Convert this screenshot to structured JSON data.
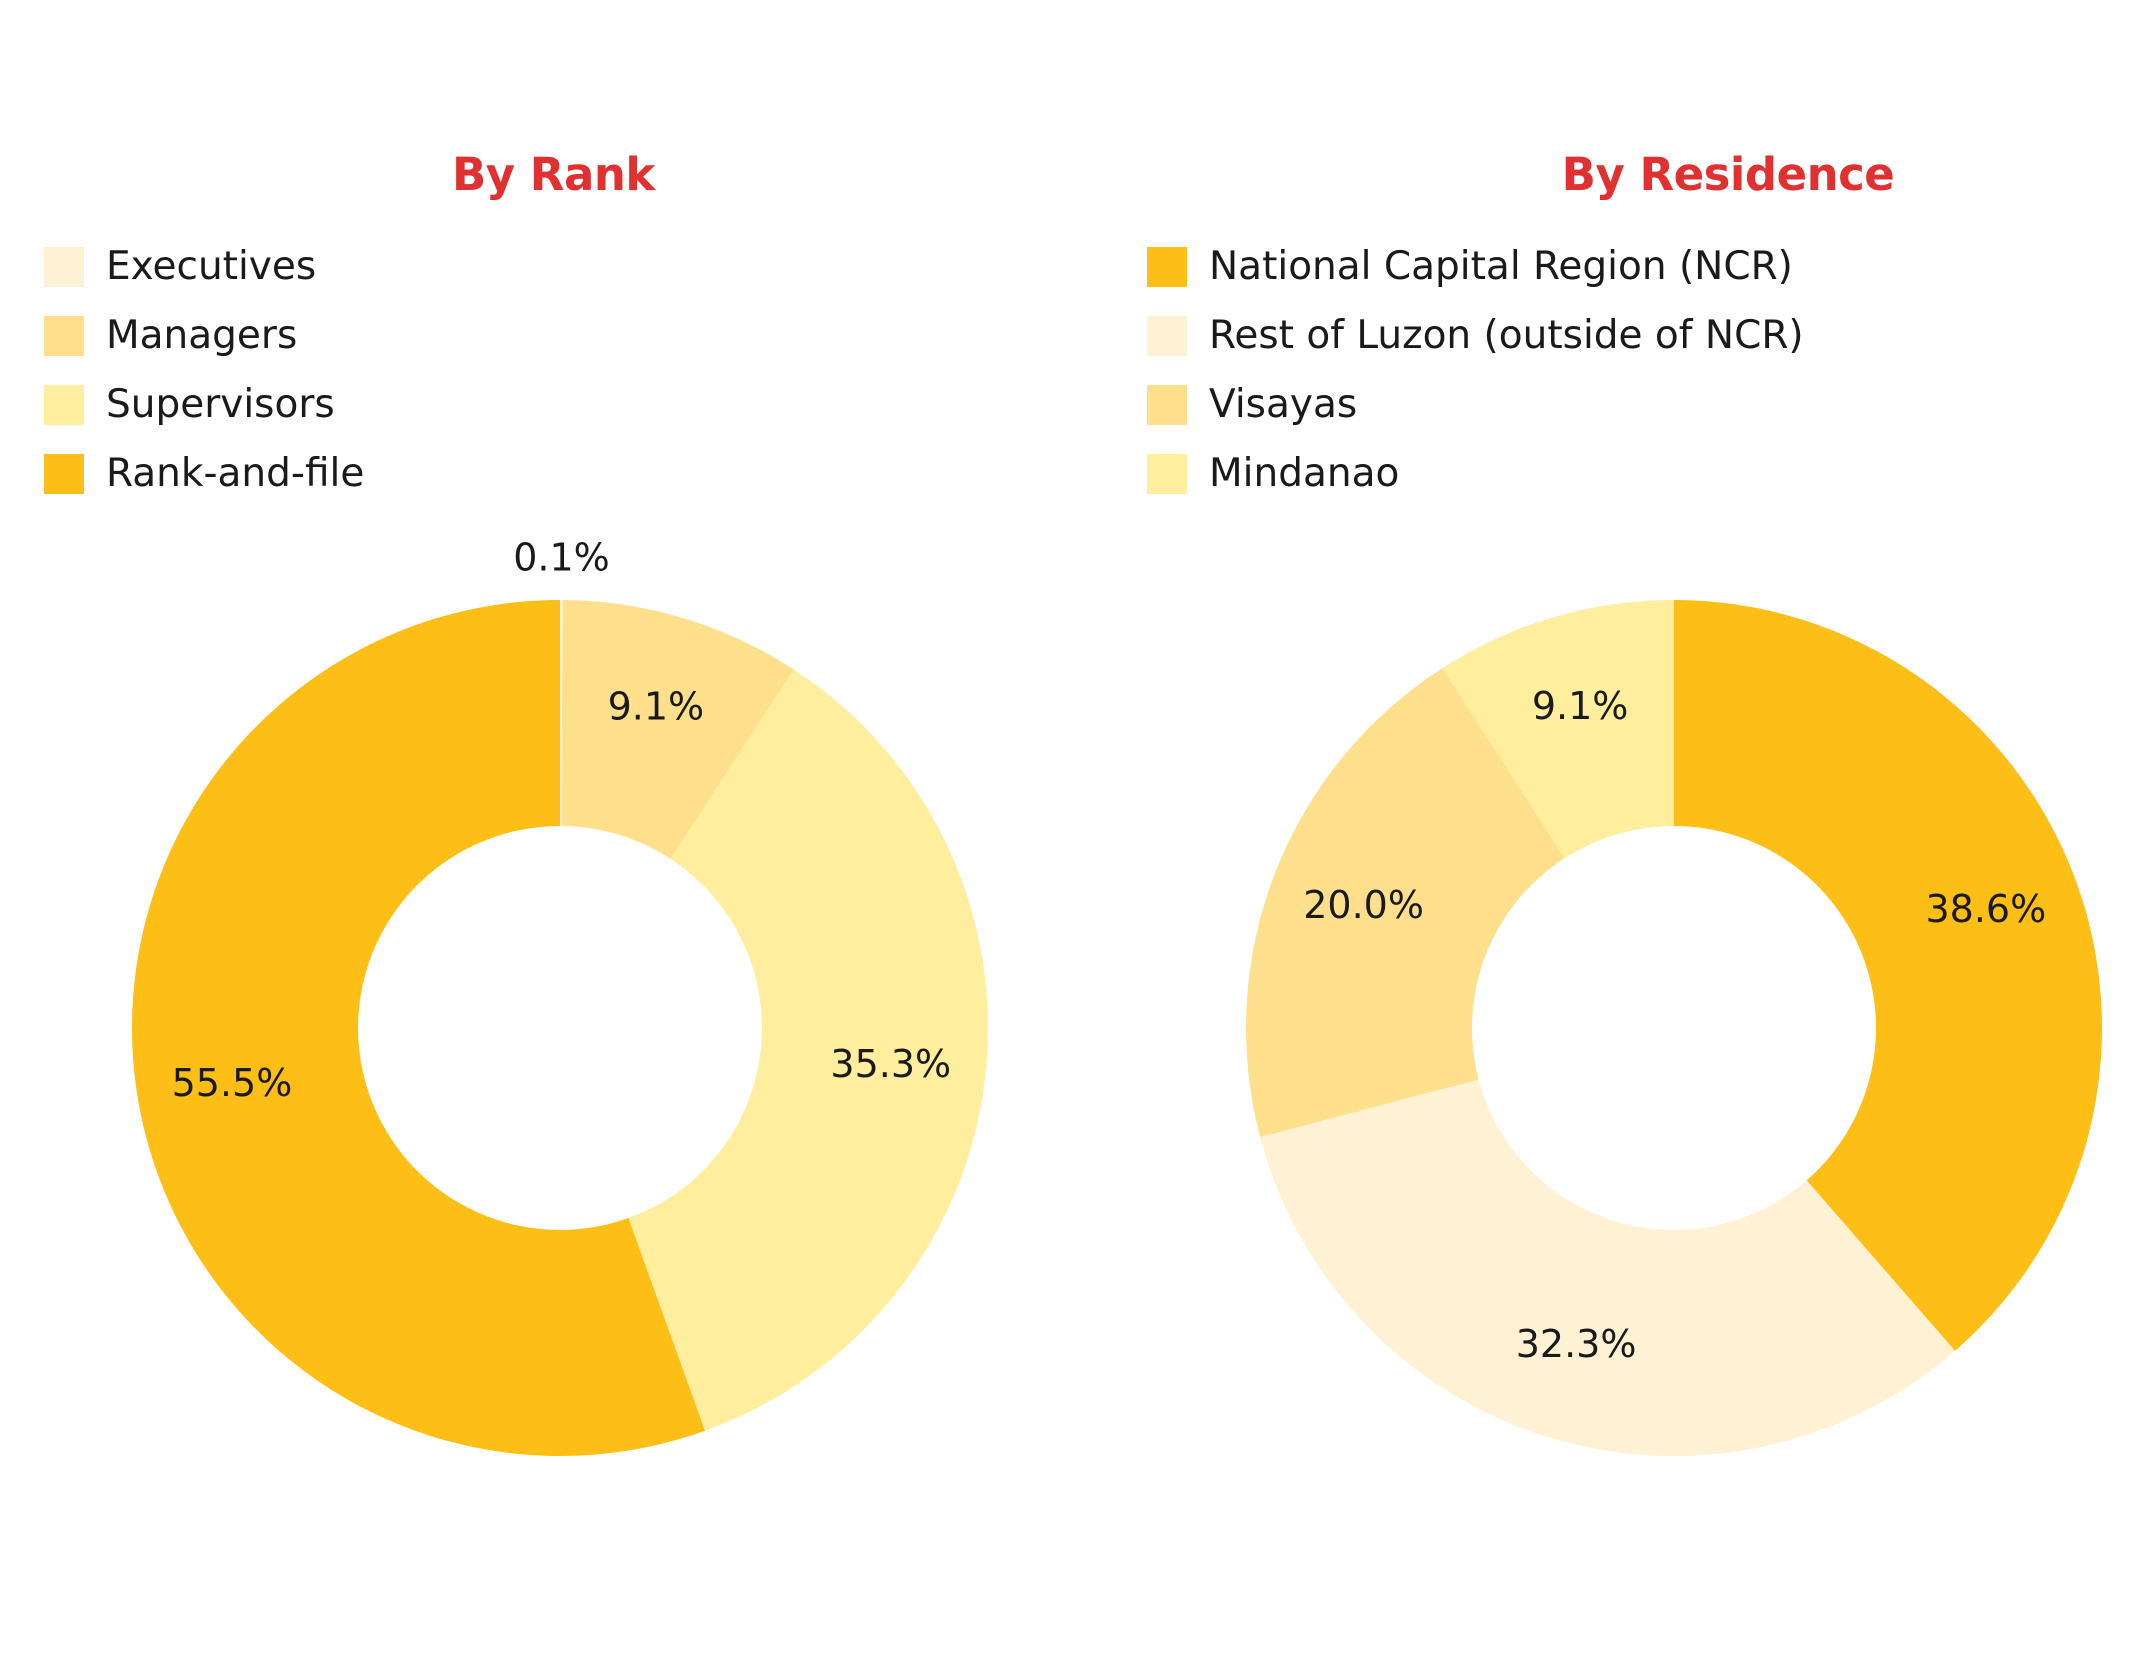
{
  "chart_data": [
    {
      "type": "pie",
      "variant": "donut",
      "title": "By Rank",
      "legend": "top-left",
      "categories": [
        "Executives",
        "Managers",
        "Supervisors",
        "Rank-and-file"
      ],
      "values": [
        0.1,
        9.1,
        35.3,
        55.5
      ],
      "labels": [
        "0.1%",
        "9.1%",
        "35.3%",
        "55.5%"
      ],
      "colors": [
        "#fff2d4",
        "#fddf8c",
        "#feee9e",
        "#fdbe16"
      ]
    },
    {
      "type": "pie",
      "variant": "donut",
      "title": "By Residence",
      "legend": "top-left",
      "categories": [
        "National Capital Region (NCR)",
        "Rest of Luzon (outside of NCR)",
        "Visayas",
        "Mindanao"
      ],
      "values": [
        38.6,
        32.3,
        20.0,
        9.1
      ],
      "labels": [
        "38.6%",
        "32.3%",
        "20.0%",
        "9.1%"
      ],
      "colors": [
        "#fdbe16",
        "#fff2d4",
        "#fddf8c",
        "#feee9e"
      ]
    }
  ]
}
